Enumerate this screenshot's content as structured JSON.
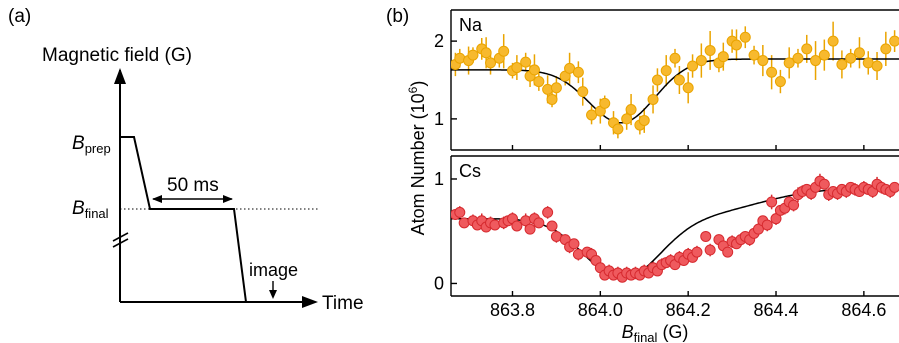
{
  "panel_a": {
    "label": "(a)",
    "ylabel": "Magnetic field (G)",
    "b_prep_main": "B",
    "b_prep_sub": "prep",
    "b_final_main": "B",
    "b_final_sub": "final",
    "duration": "50 ms",
    "image_label": "image",
    "time_label": "Time"
  },
  "panel_b": {
    "label": "(b)",
    "ylabel_main": "Atom  Number (10",
    "ylabel_sup": "6",
    "ylabel_end": ")",
    "xlabel_main": "B",
    "xlabel_sub": "final",
    "xlabel_unit": " (G)"
  },
  "chart_data": [
    {
      "type": "scatter",
      "title": "",
      "panel_label": "Na",
      "xlim": [
        863.66,
        864.68
      ],
      "ylim": [
        0.6,
        2.4
      ],
      "yticks": [
        1,
        2
      ],
      "marker_color": "#f7b92e",
      "errorbar_color": "#eaa400",
      "fit_color": "#000000",
      "x": [
        863.67,
        863.68,
        863.7,
        863.71,
        863.73,
        863.74,
        863.75,
        863.77,
        863.78,
        863.8,
        863.81,
        863.83,
        863.84,
        863.85,
        863.86,
        863.88,
        863.89,
        863.9,
        863.92,
        863.93,
        863.95,
        863.96,
        863.98,
        864.0,
        864.01,
        864.03,
        864.04,
        864.06,
        864.07,
        864.09,
        864.1,
        864.12,
        864.13,
        864.15,
        864.17,
        864.18,
        864.2,
        864.21,
        864.23,
        864.25,
        864.27,
        864.28,
        864.3,
        864.31,
        864.33,
        864.35,
        864.37,
        864.39,
        864.41,
        864.43,
        864.45,
        864.47,
        864.49,
        864.51,
        864.53,
        864.55,
        864.57,
        864.59,
        864.61,
        864.63,
        864.65,
        864.67
      ],
      "y": [
        1.7,
        1.78,
        1.75,
        1.82,
        1.9,
        1.85,
        1.72,
        1.78,
        1.87,
        1.62,
        1.66,
        1.73,
        1.55,
        1.63,
        1.48,
        1.38,
        1.25,
        1.4,
        1.55,
        1.65,
        1.6,
        1.35,
        1.05,
        1.1,
        1.2,
        0.95,
        0.87,
        1.0,
        1.12,
        0.92,
        0.98,
        1.25,
        1.5,
        1.62,
        1.78,
        1.5,
        1.4,
        1.68,
        1.75,
        1.88,
        1.72,
        1.8,
        2.0,
        1.95,
        2.05,
        1.82,
        1.75,
        1.6,
        1.48,
        1.72,
        1.78,
        1.9,
        1.75,
        1.82,
        2.0,
        1.7,
        1.78,
        1.85,
        1.72,
        1.68,
        1.9,
        2.0
      ],
      "yerr": [
        0.15,
        0.12,
        0.18,
        0.1,
        0.14,
        0.2,
        0.15,
        0.12,
        0.22,
        0.1,
        0.16,
        0.12,
        0.14,
        0.2,
        0.12,
        0.18,
        0.1,
        0.15,
        0.12,
        0.2,
        0.14,
        0.18,
        0.12,
        0.16,
        0.1,
        0.15,
        0.12,
        0.14,
        0.2,
        0.12,
        0.16,
        0.18,
        0.15,
        0.2,
        0.12,
        0.18,
        0.2,
        0.15,
        0.22,
        0.25,
        0.12,
        0.18,
        0.15,
        0.2,
        0.14,
        0.12,
        0.2,
        0.22,
        0.15,
        0.2,
        0.12,
        0.18,
        0.25,
        0.2,
        0.25,
        0.18,
        0.12,
        0.2,
        0.15,
        0.18,
        0.22,
        0.14
      ],
      "fit": {
        "baseline_left": 1.63,
        "baseline_right": 1.77,
        "center": 864.05,
        "depth": 0.7,
        "width": 0.075,
        "step_center": 864.12,
        "step_width": 0.04
      }
    },
    {
      "type": "scatter",
      "title": "",
      "panel_label": "Cs",
      "xlim": [
        863.66,
        864.68
      ],
      "ylim": [
        -0.12,
        1.22
      ],
      "yticks": [
        0,
        1
      ],
      "xticks": [
        863.8,
        864.0,
        864.2,
        864.4,
        864.6
      ],
      "xtick_labels": [
        "863.8",
        "864.0",
        "864.2",
        "864.4",
        "864.6"
      ],
      "marker_color": "#ef5a5e",
      "errorbar_color": "#d62a2f",
      "fit_color": "#000000",
      "x": [
        863.67,
        863.68,
        863.69,
        863.71,
        863.72,
        863.73,
        863.74,
        863.75,
        863.76,
        863.78,
        863.79,
        863.8,
        863.81,
        863.83,
        863.84,
        863.85,
        863.86,
        863.88,
        863.89,
        863.9,
        863.92,
        863.93,
        863.94,
        863.95,
        863.97,
        863.98,
        863.99,
        864.0,
        864.01,
        864.02,
        864.03,
        864.04,
        864.05,
        864.06,
        864.07,
        864.08,
        864.09,
        864.1,
        864.11,
        864.12,
        864.13,
        864.14,
        864.15,
        864.16,
        864.17,
        864.18,
        864.19,
        864.2,
        864.21,
        864.22,
        864.24,
        864.25,
        864.27,
        864.28,
        864.29,
        864.3,
        864.31,
        864.32,
        864.33,
        864.34,
        864.35,
        864.36,
        864.37,
        864.38,
        864.39,
        864.4,
        864.41,
        864.42,
        864.43,
        864.44,
        864.45,
        864.46,
        864.47,
        864.48,
        864.49,
        864.5,
        864.51,
        864.52,
        864.53,
        864.54,
        864.55,
        864.56,
        864.57,
        864.58,
        864.59,
        864.6,
        864.61,
        864.62,
        864.63,
        864.64,
        864.65,
        864.66,
        864.67
      ],
      "y": [
        0.66,
        0.68,
        0.58,
        0.6,
        0.56,
        0.6,
        0.54,
        0.58,
        0.56,
        0.58,
        0.6,
        0.62,
        0.55,
        0.6,
        0.52,
        0.62,
        0.58,
        0.68,
        0.55,
        0.45,
        0.42,
        0.35,
        0.38,
        0.28,
        0.3,
        0.28,
        0.22,
        0.15,
        0.08,
        0.12,
        0.08,
        0.1,
        0.06,
        0.1,
        0.08,
        0.1,
        0.08,
        0.12,
        0.1,
        0.15,
        0.12,
        0.18,
        0.2,
        0.22,
        0.18,
        0.25,
        0.22,
        0.28,
        0.25,
        0.3,
        0.45,
        0.32,
        0.42,
        0.36,
        0.3,
        0.4,
        0.38,
        0.42,
        0.45,
        0.42,
        0.48,
        0.52,
        0.6,
        0.56,
        0.78,
        0.62,
        0.7,
        0.72,
        0.78,
        0.75,
        0.85,
        0.88,
        0.9,
        0.86,
        0.92,
        0.98,
        0.95,
        0.85,
        0.88,
        0.86,
        0.9,
        0.88,
        0.92,
        0.9,
        0.88,
        0.92,
        0.9,
        0.88,
        0.95,
        0.92,
        0.9,
        0.88,
        0.92
      ],
      "yerr": [
        0.05,
        0.06,
        0.05,
        0.06,
        0.05,
        0.07,
        0.05,
        0.06,
        0.05,
        0.06,
        0.05,
        0.06,
        0.05,
        0.07,
        0.05,
        0.06,
        0.05,
        0.06,
        0.05,
        0.06,
        0.05,
        0.06,
        0.05,
        0.06,
        0.05,
        0.06,
        0.05,
        0.06,
        0.05,
        0.06,
        0.05,
        0.06,
        0.05,
        0.06,
        0.05,
        0.06,
        0.05,
        0.06,
        0.05,
        0.06,
        0.05,
        0.06,
        0.05,
        0.06,
        0.05,
        0.06,
        0.05,
        0.06,
        0.05,
        0.06,
        0.05,
        0.06,
        0.05,
        0.06,
        0.05,
        0.06,
        0.05,
        0.06,
        0.05,
        0.06,
        0.05,
        0.06,
        0.05,
        0.06,
        0.07,
        0.06,
        0.05,
        0.06,
        0.05,
        0.06,
        0.07,
        0.06,
        0.05,
        0.06,
        0.05,
        0.07,
        0.05,
        0.06,
        0.05,
        0.06,
        0.05,
        0.06,
        0.05,
        0.06,
        0.05,
        0.06,
        0.05,
        0.06,
        0.07,
        0.06,
        0.05,
        0.06,
        0.05
      ],
      "fit": {
        "baseline_left": 0.62,
        "baseline_right": 0.92,
        "center": 864.05,
        "depth": 0.58,
        "width": 0.085,
        "step_center": 864.36,
        "step_width": 0.07
      }
    }
  ]
}
